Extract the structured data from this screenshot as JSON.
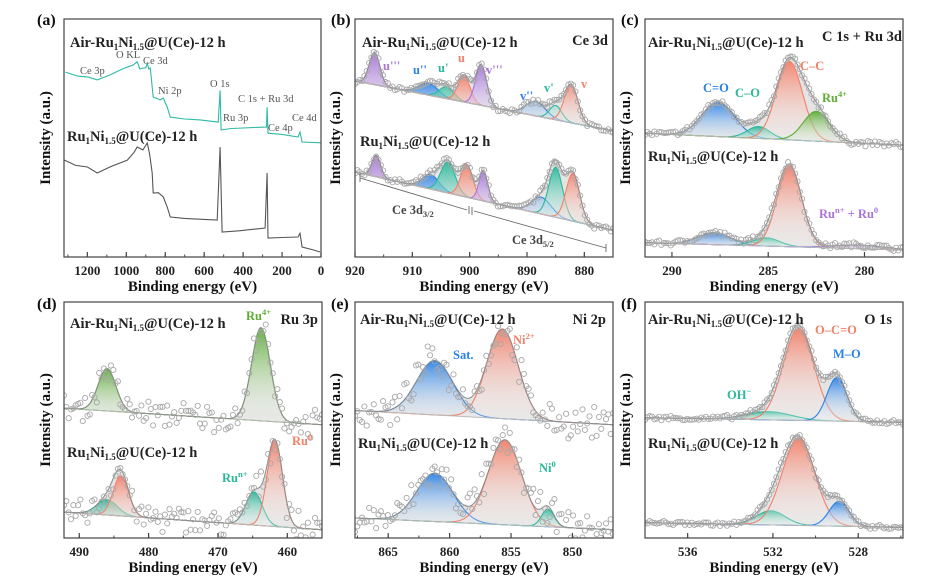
{
  "figure": {
    "xlabel": "Binding energy (eV)",
    "ylabel": "Intensity (a.u.)"
  },
  "colors": {
    "purple": "#a874dc",
    "blue": "#2c82e6",
    "teal": "#2bb89a",
    "red": "#f3806a",
    "green": "#5cad34",
    "survey_air": "#2fbaa4",
    "survey_fresh": "#555555",
    "envelope": "#8a8a8a",
    "points": "#a8a8a8"
  },
  "chart_data": [
    {
      "panel": "(a)",
      "type": "line",
      "corner_label": "",
      "xlabel": "Binding energy (eV)",
      "ylabel": "Intensity (a.u.)",
      "xlim": [
        1320,
        0
      ],
      "ylim": [
        0,
        10
      ],
      "xticks": [
        1200,
        1000,
        800,
        600,
        400,
        200,
        0
      ],
      "spectra": [
        {
          "name": "Air-Ru1Ni1.5@U(Ce)-12 h",
          "color": "#2fbaa4",
          "points": [
            [
              1313,
              7.77
            ],
            [
              1250,
              7.6
            ],
            [
              1195,
              7.56
            ],
            [
              1149,
              7.44
            ],
            [
              1082,
              7.65
            ],
            [
              1020,
              7.9
            ],
            [
              964,
              8.07
            ],
            [
              944,
              8.2
            ],
            [
              930,
              7.9
            ],
            [
              913,
              7.94
            ],
            [
              900,
              7.95
            ],
            [
              892,
              8.15
            ],
            [
              885,
              7.9
            ],
            [
              877,
              7.94
            ],
            [
              862,
              6.72
            ],
            [
              840,
              6.65
            ],
            [
              826,
              6.6
            ],
            [
              810,
              6.68
            ],
            [
              790,
              6.3
            ],
            [
              774,
              5.88
            ],
            [
              700,
              5.8
            ],
            [
              620,
              5.76
            ],
            [
              528,
              5.67
            ],
            [
              518,
              7.0
            ],
            [
              513,
              5.34
            ],
            [
              460,
              5.4
            ],
            [
              400,
              5.42
            ],
            [
              320,
              5.45
            ],
            [
              280,
              5.46
            ],
            [
              277,
              6.3
            ],
            [
              272,
              5.2
            ],
            [
              200,
              5.15
            ],
            [
              118,
              5.04
            ],
            [
              108,
              5.25
            ],
            [
              97,
              4.83
            ],
            [
              0,
              4.8
            ]
          ]
        },
        {
          "name": "Ru1Ni1.5@U(Ce)-12 h",
          "color": "#555555",
          "points": [
            [
              1318,
              4.07
            ],
            [
              1260,
              3.85
            ],
            [
              1200,
              3.78
            ],
            [
              1149,
              3.53
            ],
            [
              1080,
              3.8
            ],
            [
              995,
              4.07
            ],
            [
              960,
              4.4
            ],
            [
              944,
              4.62
            ],
            [
              915,
              4.5
            ],
            [
              892,
              4.79
            ],
            [
              880,
              4.3
            ],
            [
              867,
              3.53
            ],
            [
              862,
              2.69
            ],
            [
              835,
              2.7
            ],
            [
              810,
              2.52
            ],
            [
              790,
              2.1
            ],
            [
              774,
              1.68
            ],
            [
              700,
              1.62
            ],
            [
              600,
              1.58
            ],
            [
              533,
              1.55
            ],
            [
              518,
              4.62
            ],
            [
              508,
              1.05
            ],
            [
              420,
              1.1
            ],
            [
              330,
              1.18
            ],
            [
              287,
              1.22
            ],
            [
              277,
              3.53
            ],
            [
              272,
              0.8
            ],
            [
              200,
              0.82
            ],
            [
              118,
              0.84
            ],
            [
              108,
              1.0
            ],
            [
              97,
              0.42
            ],
            [
              40,
              0.3
            ],
            [
              5,
              0.21
            ]
          ]
        }
      ],
      "annotations": [
        {
          "text": "Ce 3p"
        },
        {
          "text": "O KL"
        },
        {
          "text": "Ce 3d"
        },
        {
          "text": "Ni 2p"
        },
        {
          "text": "O 1s"
        },
        {
          "text": "Ru 3p"
        },
        {
          "text": "C 1s + Ru 3d"
        },
        {
          "text": "Ce 4p"
        },
        {
          "text": "Ce 4d"
        }
      ]
    },
    {
      "panel": "(b)",
      "type": "area",
      "corner_label": "Ce 3d",
      "xlabel": "Binding energy (eV)",
      "ylabel": "Intensity (a.u.)",
      "xlim": [
        920,
        875
      ],
      "ylim": [
        0,
        10
      ],
      "xticks": [
        920,
        910,
        900,
        890,
        880
      ],
      "spectra": [
        {
          "name": "Air-Ru1Ni1.5@U(Ce)-12 h",
          "baseline": [
            7.4,
            5.3
          ],
          "components": [
            {
              "label": "u'''",
              "center": 916.6,
              "height": 1.35,
              "fwhm": 2.2,
              "color": "#a874dc"
            },
            {
              "label": "u''",
              "center": 907.2,
              "height": 0.5,
              "fwhm": 4.0,
              "color": "#2c82e6"
            },
            {
              "label": "u'",
              "center": 904.0,
              "height": 0.5,
              "fwhm": 3.0,
              "color": "#2bb89a"
            },
            {
              "label": "u",
              "center": 901.0,
              "height": 1.1,
              "fwhm": 2.5,
              "color": "#f3806a"
            },
            {
              "label": "v'''",
              "center": 898.0,
              "height": 1.7,
              "fwhm": 2.3,
              "color": "#a874dc"
            },
            {
              "label": "v''",
              "center": 888.5,
              "height": 0.6,
              "fwhm": 4.0,
              "color": "#2c82e6"
            },
            {
              "label": "v'",
              "center": 885.0,
              "height": 0.6,
              "fwhm": 2.5,
              "color": "#2bb89a"
            },
            {
              "label": "v",
              "center": 882.3,
              "height": 1.6,
              "fwhm": 2.8,
              "color": "#f3806a"
            }
          ]
        },
        {
          "name": "Ru1Ni1.5@U(Ce)-12 h",
          "baseline": [
            3.57,
            1.13
          ],
          "components": [
            {
              "label": "u'''",
              "center": 916.3,
              "height": 0.9,
              "fwhm": 1.8,
              "color": "#a874dc"
            },
            {
              "label": "u''",
              "center": 906.8,
              "height": 0.6,
              "fwhm": 3.5,
              "color": "#2c82e6"
            },
            {
              "label": "u'",
              "center": 903.8,
              "height": 1.3,
              "fwhm": 3.0,
              "color": "#2bb89a"
            },
            {
              "label": "u",
              "center": 900.5,
              "height": 1.35,
              "fwhm": 2.5,
              "color": "#f3806a"
            },
            {
              "label": "v'''",
              "center": 897.6,
              "height": 1.25,
              "fwhm": 1.8,
              "color": "#a874dc"
            },
            {
              "label": "v''",
              "center": 887.5,
              "height": 0.7,
              "fwhm": 4.0,
              "color": "#2c82e6"
            },
            {
              "label": "v'",
              "center": 885.0,
              "height": 2.1,
              "fwhm": 2.8,
              "color": "#2bb89a"
            },
            {
              "label": "v",
              "center": 882.0,
              "height": 2.0,
              "fwhm": 2.8,
              "color": "#f3806a"
            }
          ]
        }
      ],
      "annotations": [
        {
          "text": "u'''",
          "color": "#a874dc"
        },
        {
          "text": "u''",
          "color": "#2c82e6"
        },
        {
          "text": "u'",
          "color": "#2bb89a"
        },
        {
          "text": "u",
          "color": "#f3806a"
        },
        {
          "text": "v'''",
          "color": "#a874dc"
        },
        {
          "text": "v''",
          "color": "#2c82e6"
        },
        {
          "text": "v'",
          "color": "#2bb89a"
        },
        {
          "text": "v",
          "color": "#f3806a"
        },
        {
          "text": "Ce 3d",
          "sub": "3/2",
          "color": "#444444"
        },
        {
          "text": "Ce 3d",
          "sub": "5/2",
          "color": "#444444"
        }
      ]
    },
    {
      "panel": "(c)",
      "type": "area",
      "corner_label": "C 1s + Ru 3d",
      "xlabel": "Binding energy (eV)",
      "ylabel": "Intensity (a.u.)",
      "xlim": [
        291.4,
        278
      ],
      "ylim": [
        0,
        10
      ],
      "xticks": [
        290,
        285,
        280
      ],
      "spectra": [
        {
          "name": "Air-Ru1Ni1.5@U(Ce)-12 h",
          "baseline": [
            5.2,
            4.7
          ],
          "components": [
            {
              "label": "C=O",
              "center": 287.6,
              "height": 1.45,
              "fwhm": 2.0,
              "color": "#2c82e6"
            },
            {
              "label": "C–O",
              "center": 285.5,
              "height": 0.5,
              "fwhm": 1.4,
              "color": "#2bb89a"
            },
            {
              "label": "C–C",
              "center": 283.9,
              "height": 3.3,
              "fwhm": 1.6,
              "color": "#f3806a"
            },
            {
              "label": "Ru4+",
              "center": 282.5,
              "height": 1.25,
              "fwhm": 1.6,
              "color": "#5cad34"
            }
          ]
        },
        {
          "name": "Ru1Ni1.5@U(Ce)-12 h",
          "baseline": [
            0.6,
            0.3
          ],
          "components": [
            {
              "label": "C=O",
              "center": 287.8,
              "height": 0.5,
              "fwhm": 2.0,
              "color": "#2c82e6"
            },
            {
              "label": "C–O",
              "center": 285.1,
              "height": 0.35,
              "fwhm": 1.6,
              "color": "#2bb89a"
            },
            {
              "label": "C–C",
              "center": 283.9,
              "height": 3.4,
              "fwhm": 1.5,
              "color": "#f3806a"
            },
            {
              "label": "Run+ + Ru0",
              "center": 280.3,
              "height": 0.15,
              "fwhm": 3.0,
              "color": "#a874dc"
            }
          ]
        }
      ],
      "annotations": [
        {
          "text": "C=O",
          "color": "#2c82e6"
        },
        {
          "text": "C–O",
          "color": "#2bb89a"
        },
        {
          "text": "C–C",
          "color": "#f3806a"
        },
        {
          "text": "Ru",
          "sup": "4+",
          "color": "#5cad34"
        },
        {
          "text": "Ru",
          "sup": "n+",
          "rest": " + Ru",
          "sup2": "0",
          "color": "#a874dc"
        }
      ]
    },
    {
      "panel": "(d)",
      "type": "area",
      "corner_label": "Ru 3p",
      "xlabel": "Binding energy (eV)",
      "ylabel": "Intensity (a.u.)",
      "xlim": [
        492.2,
        455
      ],
      "ylim": [
        0,
        10
      ],
      "xticks": [
        490,
        480,
        470,
        460
      ],
      "spectra": [
        {
          "name": "Air-Ru1Ni1.5@U(Ce)-12 h",
          "baseline": [
            5.5,
            4.8
          ],
          "components": [
            {
              "label": "Ru4+",
              "center": 486.0,
              "height": 1.8,
              "fwhm": 3.0,
              "color": "#5cad34"
            },
            {
              "label": "Ru4+",
              "center": 463.8,
              "height": 3.95,
              "fwhm": 3.2,
              "color": "#5cad34"
            }
          ]
        },
        {
          "name": "Ru1Ni1.5@U(Ce)-12 h",
          "baseline": [
            1.1,
            0.35
          ],
          "components": [
            {
              "label": "Run+",
              "center": 486.0,
              "height": 0.65,
              "fwhm": 3.5,
              "color": "#2bb89a"
            },
            {
              "label": "Ru0",
              "center": 484.0,
              "height": 1.7,
              "fwhm": 2.6,
              "color": "#f3806a"
            },
            {
              "label": "Run+",
              "center": 464.8,
              "height": 1.4,
              "fwhm": 2.8,
              "color": "#2bb89a"
            },
            {
              "label": "Ru0",
              "center": 461.8,
              "height": 3.65,
              "fwhm": 2.6,
              "color": "#f3806a"
            }
          ]
        }
      ],
      "annotations": [
        {
          "text": "Ru",
          "sup": "4+",
          "color": "#5cad34"
        },
        {
          "text": "Ru",
          "sup": "0",
          "color": "#f3806a"
        },
        {
          "text": "Ru",
          "sup": "n+",
          "color": "#2bb89a"
        }
      ]
    },
    {
      "panel": "(e)",
      "type": "area",
      "corner_label": "Ni 2p",
      "xlabel": "Binding energy (eV)",
      "ylabel": "Intensity (a.u.)",
      "xlim": [
        867.7,
        846.7
      ],
      "ylim": [
        0,
        10
      ],
      "xticks": [
        865,
        860,
        855,
        850
      ],
      "spectra": [
        {
          "name": "Air-Ru1Ni1.5@U(Ce)-12 h",
          "baseline": [
            5.4,
            4.8
          ],
          "components": [
            {
              "label": "Sat.",
              "center": 861.2,
              "height": 2.3,
              "fwhm": 3.5,
              "color": "#2c82e6"
            },
            {
              "label": "Ni2+",
              "center": 855.7,
              "height": 3.8,
              "fwhm": 3.0,
              "color": "#f3806a"
            }
          ]
        },
        {
          "name": "Ru1Ni1.5@U(Ce)-12 h",
          "baseline": [
            0.85,
            0.35
          ],
          "components": [
            {
              "label": "Sat.",
              "center": 861.2,
              "height": 2.05,
              "fwhm": 3.5,
              "color": "#2c82e6"
            },
            {
              "label": "Ni2+",
              "center": 855.5,
              "height": 3.6,
              "fwhm": 3.2,
              "color": "#f3806a"
            },
            {
              "label": "Ni0",
              "center": 852.0,
              "height": 0.75,
              "fwhm": 1.2,
              "color": "#2bb89a"
            }
          ]
        }
      ],
      "annotations": [
        {
          "text": "Sat.",
          "color": "#2c82e6"
        },
        {
          "text": "Ni",
          "sup": "2+",
          "color": "#f3806a"
        },
        {
          "text": "Ni",
          "sup": "0",
          "color": "#2bb89a"
        }
      ]
    },
    {
      "panel": "(f)",
      "type": "area",
      "corner_label": "O 1s",
      "xlabel": "Binding energy (eV)",
      "ylabel": "Intensity (a.u.)",
      "xlim": [
        538,
        525.9
      ],
      "ylim": [
        0,
        10
      ],
      "xticks": [
        536,
        532,
        528
      ],
      "spectra": [
        {
          "name": "Air-Ru1Ni1.5@U(Ce)-12 h",
          "baseline": [
            5.1,
            4.9
          ],
          "components": [
            {
              "label": "OH−",
              "center": 532.2,
              "height": 0.35,
              "fwhm": 2.5,
              "color": "#2bb89a"
            },
            {
              "label": "O–C=O",
              "center": 530.8,
              "height": 3.9,
              "fwhm": 1.7,
              "color": "#f3806a"
            },
            {
              "label": "M–O",
              "center": 529.0,
              "height": 1.85,
              "fwhm": 1.1,
              "color": "#2c82e6"
            }
          ]
        },
        {
          "name": "Ru1Ni1.5@U(Ce)-12 h",
          "baseline": [
            0.65,
            0.45
          ],
          "components": [
            {
              "label": "OH−",
              "center": 532.1,
              "height": 0.6,
              "fwhm": 1.6,
              "color": "#2bb89a"
            },
            {
              "label": "O–C=O",
              "center": 530.8,
              "height": 3.7,
              "fwhm": 1.8,
              "color": "#f3806a"
            },
            {
              "label": "M–O",
              "center": 528.9,
              "height": 1.05,
              "fwhm": 1.1,
              "color": "#2c82e6"
            }
          ]
        }
      ],
      "annotations": [
        {
          "text": "O–C=O",
          "color": "#f3806a"
        },
        {
          "text": "M–O",
          "color": "#2c82e6"
        },
        {
          "text": "OH",
          "sup": "−",
          "color": "#2bb89a"
        }
      ]
    }
  ]
}
